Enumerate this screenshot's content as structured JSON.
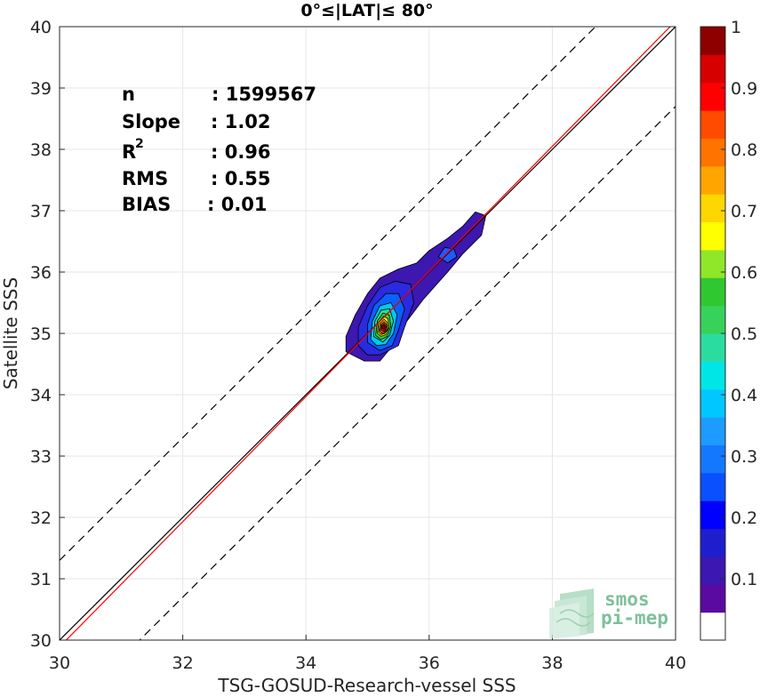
{
  "chart_data": {
    "type": "heatmap",
    "title": "0°≤|LAT|≤ 80°",
    "xlabel": "TSG-GOSUD-Research-vessel SSS",
    "ylabel": "Satellite SSS",
    "xlim": [
      30,
      40
    ],
    "ylim": [
      30,
      40
    ],
    "xticks": [
      "30",
      "32",
      "34",
      "36",
      "38",
      "40"
    ],
    "yticks": [
      "30",
      "31",
      "32",
      "33",
      "34",
      "35",
      "36",
      "37",
      "38",
      "39",
      "40"
    ],
    "grid": true,
    "stats": [
      {
        "label": "n",
        "value": ": 1599567"
      },
      {
        "label": "Slope",
        "value": ": 1.02"
      },
      {
        "label": "R",
        "sup": "2",
        "value": ": 0.96"
      },
      {
        "label": "RMS",
        "value": ": 0.55"
      },
      {
        "label": "BIAS",
        "value": ": 0.01"
      }
    ],
    "lines": {
      "identity": {
        "slope": 1,
        "intercept": 0,
        "color": "#000000",
        "style": "solid"
      },
      "fit": {
        "slope": 1.02,
        "intercept": -0.71,
        "color": "#ff0000",
        "style": "solid"
      },
      "upper_bound": {
        "offset": 1.3,
        "color": "#000000",
        "style": "dashed"
      },
      "lower_bound": {
        "offset": -1.3,
        "color": "#000000",
        "style": "dashed"
      }
    },
    "density_contours": [
      {
        "level": 0.05,
        "color": "#3c17b0",
        "points": [
          [
            34.65,
            34.7
          ],
          [
            34.65,
            34.95
          ],
          [
            34.8,
            35.3
          ],
          [
            35.0,
            35.65
          ],
          [
            35.2,
            35.9
          ],
          [
            35.5,
            36.05
          ],
          [
            35.8,
            36.15
          ],
          [
            36.0,
            36.35
          ],
          [
            36.3,
            36.55
          ],
          [
            36.55,
            36.75
          ],
          [
            36.75,
            36.98
          ],
          [
            36.92,
            36.92
          ],
          [
            36.85,
            36.6
          ],
          [
            36.55,
            36.3
          ],
          [
            36.3,
            36.0
          ],
          [
            35.9,
            35.55
          ],
          [
            35.6,
            35.15
          ],
          [
            35.45,
            34.85
          ],
          [
            35.2,
            34.55
          ],
          [
            34.95,
            34.55
          ]
        ]
      },
      {
        "level": 0.1,
        "color": "#2a2ae0",
        "points": [
          [
            34.85,
            34.8
          ],
          [
            34.85,
            35.1
          ],
          [
            35.0,
            35.45
          ],
          [
            35.2,
            35.75
          ],
          [
            35.45,
            35.85
          ],
          [
            35.7,
            35.8
          ],
          [
            35.75,
            35.5
          ],
          [
            35.6,
            35.1
          ],
          [
            35.5,
            34.8
          ],
          [
            35.2,
            34.65
          ],
          [
            35.0,
            34.65
          ]
        ]
      },
      {
        "level": 0.2,
        "color": "#0a60ff",
        "points": [
          [
            35.0,
            34.85
          ],
          [
            35.0,
            35.15
          ],
          [
            35.1,
            35.45
          ],
          [
            35.3,
            35.65
          ],
          [
            35.5,
            35.65
          ],
          [
            35.6,
            35.4
          ],
          [
            35.5,
            35.05
          ],
          [
            35.4,
            34.8
          ],
          [
            35.2,
            34.72
          ]
        ]
      },
      {
        "level": 0.3,
        "color": "#00c8f0",
        "points": [
          [
            35.05,
            34.9
          ],
          [
            35.08,
            35.2
          ],
          [
            35.2,
            35.45
          ],
          [
            35.38,
            35.5
          ],
          [
            35.48,
            35.3
          ],
          [
            35.42,
            35.0
          ],
          [
            35.3,
            34.82
          ],
          [
            35.15,
            34.8
          ]
        ]
      },
      {
        "level": 0.4,
        "color": "#27e08a",
        "points": [
          [
            35.1,
            34.95
          ],
          [
            35.12,
            35.2
          ],
          [
            35.22,
            35.38
          ],
          [
            35.36,
            35.4
          ],
          [
            35.42,
            35.2
          ],
          [
            35.36,
            34.97
          ],
          [
            35.25,
            34.86
          ]
        ]
      },
      {
        "level": 0.5,
        "color": "#3cd23c",
        "points": [
          [
            35.13,
            34.97
          ],
          [
            35.16,
            35.2
          ],
          [
            35.25,
            35.33
          ],
          [
            35.35,
            35.3
          ],
          [
            35.38,
            35.12
          ],
          [
            35.32,
            34.95
          ],
          [
            35.22,
            34.9
          ]
        ]
      },
      {
        "level": 0.6,
        "color": "#e8f01e",
        "points": [
          [
            35.16,
            35.0
          ],
          [
            35.18,
            35.18
          ],
          [
            35.26,
            35.28
          ],
          [
            35.33,
            35.24
          ],
          [
            35.35,
            35.1
          ],
          [
            35.3,
            34.98
          ],
          [
            35.22,
            34.95
          ]
        ]
      },
      {
        "level": 0.7,
        "color": "#ffb400",
        "points": [
          [
            35.18,
            35.02
          ],
          [
            35.2,
            35.16
          ],
          [
            35.27,
            35.23
          ],
          [
            35.32,
            35.18
          ],
          [
            35.33,
            35.07
          ],
          [
            35.28,
            35.0
          ],
          [
            35.22,
            34.98
          ]
        ]
      },
      {
        "level": 0.8,
        "color": "#ff5a00",
        "points": [
          [
            35.2,
            35.04
          ],
          [
            35.22,
            35.15
          ],
          [
            35.27,
            35.19
          ],
          [
            35.31,
            35.14
          ],
          [
            35.31,
            35.05
          ],
          [
            35.27,
            35.01
          ],
          [
            35.23,
            35.0
          ]
        ]
      },
      {
        "level": 0.9,
        "color": "#e60000",
        "points": [
          [
            35.22,
            35.06
          ],
          [
            35.23,
            35.13
          ],
          [
            35.27,
            35.16
          ],
          [
            35.3,
            35.11
          ],
          [
            35.29,
            35.05
          ],
          [
            35.26,
            35.03
          ]
        ]
      },
      {
        "level": 0.97,
        "color": "#a00000",
        "points": [
          [
            35.24,
            35.08
          ],
          [
            35.25,
            35.12
          ],
          [
            35.27,
            35.13
          ],
          [
            35.28,
            35.1
          ],
          [
            35.27,
            35.07
          ]
        ]
      },
      {
        "level": 0.2,
        "color": "#1e5aff",
        "points": [
          [
            36.15,
            36.25
          ],
          [
            36.25,
            36.4
          ],
          [
            36.4,
            36.38
          ],
          [
            36.45,
            36.25
          ],
          [
            36.3,
            36.15
          ]
        ]
      }
    ],
    "colorbar": {
      "range": [
        0,
        1
      ],
      "ticks": [
        "0.1",
        "0.2",
        "0.3",
        "0.4",
        "0.5",
        "0.6",
        "0.7",
        "0.8",
        "0.9",
        "1"
      ],
      "tick_values": [
        0.1,
        0.2,
        0.3,
        0.4,
        0.5,
        0.6,
        0.7,
        0.8,
        0.9,
        1.0
      ],
      "colors": [
        "#ffffff",
        "#5a0aa0",
        "#3c17b0",
        "#1e1ecd",
        "#0000ff",
        "#0a50ff",
        "#1478ff",
        "#1e9bff",
        "#00c8ff",
        "#00e6e6",
        "#2bdca0",
        "#36d25a",
        "#30c830",
        "#90e628",
        "#ffff00",
        "#ffd700",
        "#ffa500",
        "#ff7300",
        "#ff4b00",
        "#ff0000",
        "#d70000",
        "#8c0000"
      ]
    },
    "logo": {
      "line1": "smos",
      "line2": "pi-mep"
    }
  }
}
